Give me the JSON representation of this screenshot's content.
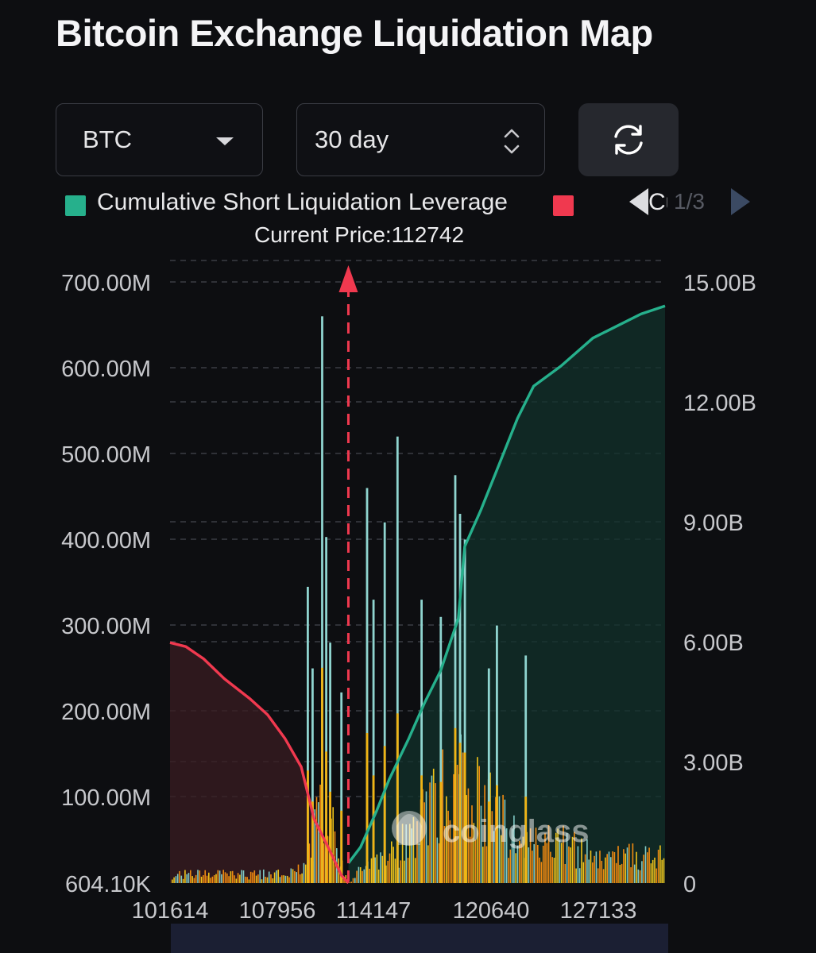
{
  "title": "Bitcoin Exchange Liquidation Map",
  "controls": {
    "coin": "BTC",
    "range": "30 day",
    "refresh_icon": "refresh-icon"
  },
  "legend": {
    "items": [
      {
        "label": "Cumulative Short Liquidation Leverage",
        "color": "#26b08c"
      },
      {
        "label": "Cu",
        "color": "#f0394f"
      }
    ],
    "pager": "1/3"
  },
  "watermark": "coinglass",
  "chart_data": {
    "type": "bar",
    "current_price_label": "Current Price:112742",
    "current_price": 112742,
    "x_range": [
      101614,
      132500
    ],
    "x_ticks": [
      101614,
      107956,
      114147,
      120640,
      127133
    ],
    "left_axis": {
      "min": 0.6041,
      "max": 700,
      "unit": "M",
      "ticks": [
        "604.10K",
        "100.00M",
        "200.00M",
        "300.00M",
        "400.00M",
        "500.00M",
        "600.00M",
        "700.00M"
      ]
    },
    "right_axis": {
      "min": 0,
      "max": 15,
      "unit": "B",
      "ticks": [
        "0",
        "3.00B",
        "6.00B",
        "9.00B",
        "12.00B",
        "15.00B"
      ]
    },
    "grid": true,
    "colors": {
      "short_line": "#26b08c",
      "long_line": "#f0394f",
      "bars_high": "#7fc9c4",
      "bars_mid": "#f0c419",
      "bars_low": "#f08a10"
    },
    "spikes_millions": [
      {
        "x": 110200,
        "value": 345
      },
      {
        "x": 110500,
        "value": 250
      },
      {
        "x": 111100,
        "value": 660
      },
      {
        "x": 111350,
        "value": 403
      },
      {
        "x": 111600,
        "value": 280
      },
      {
        "x": 112300,
        "value": 222
      },
      {
        "x": 113900,
        "value": 460
      },
      {
        "x": 114300,
        "value": 330
      },
      {
        "x": 115000,
        "value": 420
      },
      {
        "x": 115800,
        "value": 520
      },
      {
        "x": 117300,
        "value": 330
      },
      {
        "x": 118500,
        "value": 310
      },
      {
        "x": 119400,
        "value": 475
      },
      {
        "x": 119700,
        "value": 430
      },
      {
        "x": 120000,
        "value": 400
      },
      {
        "x": 121500,
        "value": 250
      },
      {
        "x": 122000,
        "value": 300
      },
      {
        "x": 123800,
        "value": 265
      }
    ],
    "short_cumulative_billions": [
      [
        112742,
        0.5
      ],
      [
        113500,
        0.9
      ],
      [
        114500,
        1.8
      ],
      [
        115300,
        2.6
      ],
      [
        116500,
        3.6
      ],
      [
        117500,
        4.5
      ],
      [
        118500,
        5.3
      ],
      [
        119600,
        6.6
      ],
      [
        120000,
        8.4
      ],
      [
        121000,
        9.3
      ],
      [
        122000,
        10.3
      ],
      [
        123300,
        11.6
      ],
      [
        124300,
        12.4
      ],
      [
        126000,
        12.9
      ],
      [
        128000,
        13.6
      ],
      [
        131000,
        14.2
      ],
      [
        132500,
        14.4
      ]
    ],
    "long_cumulative_billions": [
      [
        101614,
        6.0
      ],
      [
        102600,
        5.9
      ],
      [
        103700,
        5.6
      ],
      [
        105000,
        5.1
      ],
      [
        106600,
        4.6
      ],
      [
        107700,
        4.2
      ],
      [
        108800,
        3.6
      ],
      [
        109800,
        2.9
      ],
      [
        110600,
        1.6
      ],
      [
        111600,
        0.8
      ],
      [
        112300,
        0.2
      ],
      [
        112742,
        0.0
      ]
    ]
  }
}
